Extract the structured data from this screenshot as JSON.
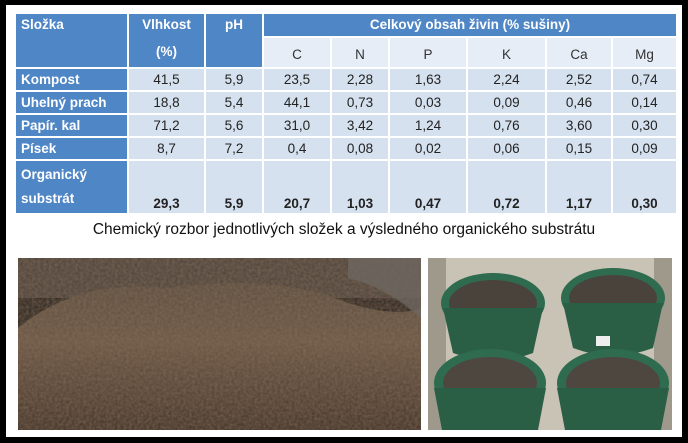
{
  "table": {
    "header": {
      "name": "Složka",
      "moisture": [
        "Vlhkost",
        "(%)"
      ],
      "ph": "pH",
      "group": "Celkový obsah živin (% sušiny)",
      "nutrients": [
        "C",
        "N",
        "P",
        "K",
        "Ca",
        "Mg"
      ]
    },
    "rows": [
      {
        "name": "Kompost",
        "values": [
          "41,5",
          "5,9",
          "23,5",
          "2,28",
          "1,63",
          "2,24",
          "2,52",
          "0,74"
        ]
      },
      {
        "name": "Uhelný prach",
        "values": [
          "18,8",
          "5,4",
          "44,1",
          "0,73",
          "0,03",
          "0,09",
          "0,46",
          "0,14"
        ]
      },
      {
        "name": "Papír. kal",
        "values": [
          "71,2",
          "5,6",
          "31,0",
          "3,42",
          "1,24",
          "0,76",
          "3,60",
          "0,30"
        ]
      },
      {
        "name": "Písek",
        "values": [
          "8,7",
          "7,2",
          "0,4",
          "0,08",
          "0,02",
          "0,06",
          "0,15",
          "0,09"
        ]
      },
      {
        "name": "Organický substrát",
        "values": [
          "29,3",
          "5,9",
          "20,7",
          "1,03",
          "0,47",
          "0,72",
          "1,17",
          "0,30"
        ]
      }
    ]
  },
  "caption": "Chemický rozbor jednotlivých složek a výsledného organického substrátu"
}
